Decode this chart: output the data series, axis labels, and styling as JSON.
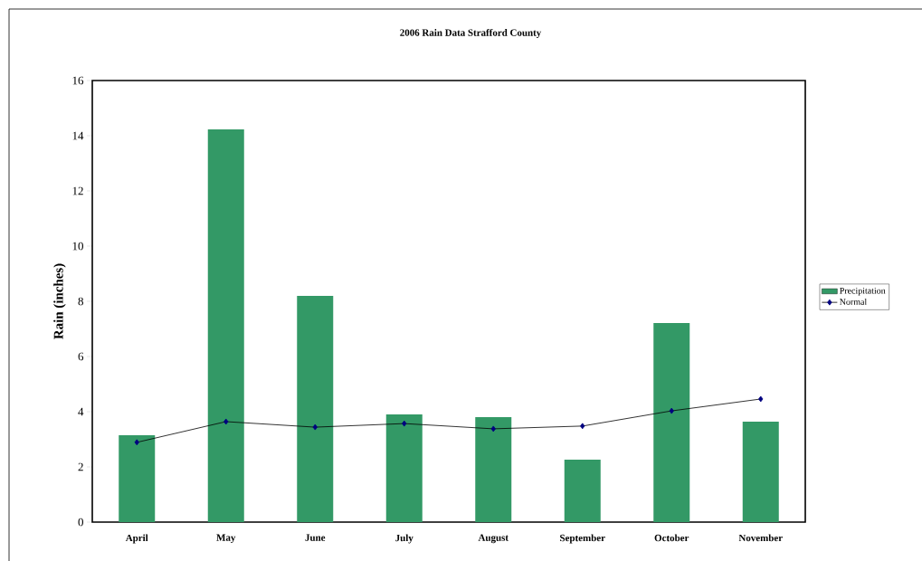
{
  "chart_data": {
    "type": "bar",
    "title": "2006 Rain Data Strafford County",
    "ylabel": "Rain (inches)",
    "categories": [
      "April",
      "May",
      "June",
      "July",
      "August",
      "September",
      "October",
      "November"
    ],
    "series": [
      {
        "name": "Precipitation",
        "color": "#339966",
        "values": [
          3.15,
          14.23,
          8.2,
          3.9,
          3.8,
          2.26,
          7.21,
          3.64
        ]
      },
      {
        "name": "Normal",
        "type": "line",
        "color": "#000000",
        "marker": "diamond",
        "values": [
          2.89,
          3.64,
          3.44,
          3.57,
          3.38,
          3.48,
          4.03,
          4.46
        ]
      }
    ],
    "ylim": [
      0,
      16
    ],
    "yticks": [
      0,
      2,
      4,
      6,
      8,
      10,
      12,
      14,
      16
    ],
    "legend": "right"
  }
}
